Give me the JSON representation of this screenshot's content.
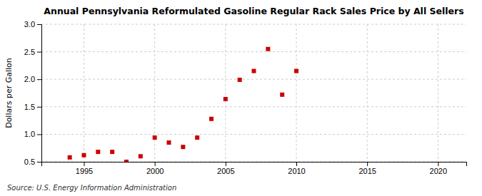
{
  "chart_data": {
    "type": "scatter",
    "title": "Annual Pennsylvania Reformulated Gasoline Regular Rack Sales Price by All Sellers",
    "ylabel": "Dollars per Gallon",
    "annotation": "Source: U.S. Energy Information Administration",
    "x": [
      1994,
      1995,
      1996,
      1997,
      1998,
      1999,
      2000,
      2001,
      2002,
      2003,
      2004,
      2005,
      2006,
      2007,
      2008,
      2009,
      2010
    ],
    "values": [
      0.58,
      0.62,
      0.68,
      0.68,
      0.5,
      0.6,
      0.94,
      0.85,
      0.77,
      0.94,
      1.28,
      1.64,
      1.99,
      2.15,
      2.55,
      1.72,
      2.15
    ],
    "color": "#cc0000",
    "marker": "square",
    "xlim": [
      1992,
      2022
    ],
    "ylim": [
      0.5,
      3.0
    ],
    "xticks": [
      1995,
      2000,
      2005,
      2010,
      2015,
      2020
    ],
    "yticks": [
      0.5,
      {
        "value": 1.0,
        "label": "1.0"
      },
      1.5,
      {
        "value": 2.0,
        "label": "2.0"
      },
      2.5,
      {
        "value": 3.0,
        "label": "3.0"
      }
    ],
    "grid": true
  }
}
